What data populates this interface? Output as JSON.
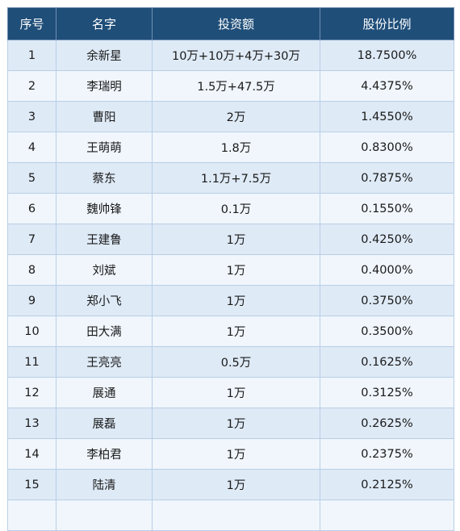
{
  "table": {
    "headers": [
      "序号",
      "名字",
      "投资额",
      "股份比例"
    ],
    "rows": [
      [
        "1",
        "余新星",
        "10万+10万+4万+30万",
        "18.7500%"
      ],
      [
        "2",
        "李瑞明",
        "1.5万+47.5万",
        "4.4375%"
      ],
      [
        "3",
        "曹阳",
        "2万",
        "1.4550%"
      ],
      [
        "4",
        "王萌萌",
        "1.8万",
        "0.8300%"
      ],
      [
        "5",
        "蔡东",
        "1.1万+7.5万",
        "0.7875%"
      ],
      [
        "6",
        "魏帅锋",
        "0.1万",
        "0.1550%"
      ],
      [
        "7",
        "王建鲁",
        "1万",
        "0.4250%"
      ],
      [
        "8",
        "刘斌",
        "1万",
        "0.4000%"
      ],
      [
        "9",
        "郑小飞",
        "1万",
        "0.3750%"
      ],
      [
        "10",
        "田大满",
        "1万",
        "0.3500%"
      ],
      [
        "11",
        "王亮亮",
        "0.5万",
        "0.1625%"
      ],
      [
        "12",
        "展通",
        "1万",
        "0.3125%"
      ],
      [
        "13",
        "展磊",
        "1万",
        "0.2625%"
      ],
      [
        "14",
        "李柏君",
        "1万",
        "0.2375%"
      ],
      [
        "15",
        "陆清",
        "1万",
        "0.2125%"
      ],
      [
        "",
        "",
        "",
        ""
      ]
    ]
  },
  "colors": {
    "header_bg": "#1f4e79",
    "header_text": "#ffffff",
    "row_odd": "#deeaf6",
    "row_even": "#f0f6fc",
    "grid": "#b9cfe6"
  }
}
